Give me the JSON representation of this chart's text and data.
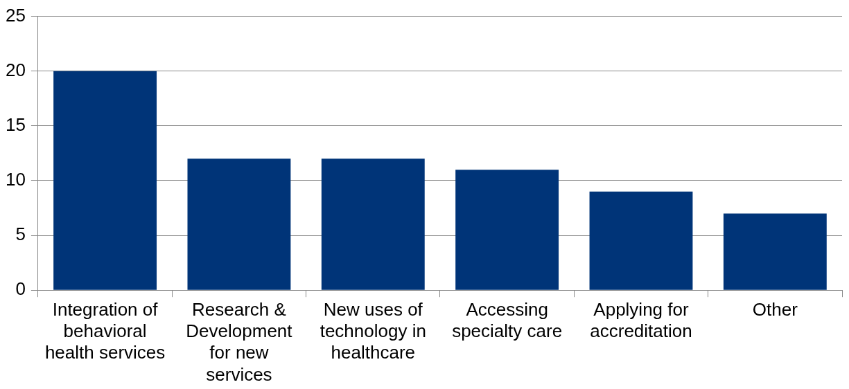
{
  "chart_data": {
    "type": "bar",
    "categories": [
      "Integration of behavioral health services",
      "Research & Development for new services",
      "New uses of technology in healthcare",
      "Accessing specialty care",
      "Applying for accreditation",
      "Other"
    ],
    "values": [
      20,
      12,
      12,
      11,
      9,
      7
    ],
    "color": "#003478",
    "ylim": [
      0,
      25
    ],
    "yticks": [
      0,
      5,
      10,
      15,
      20,
      25
    ],
    "grid": "y"
  }
}
